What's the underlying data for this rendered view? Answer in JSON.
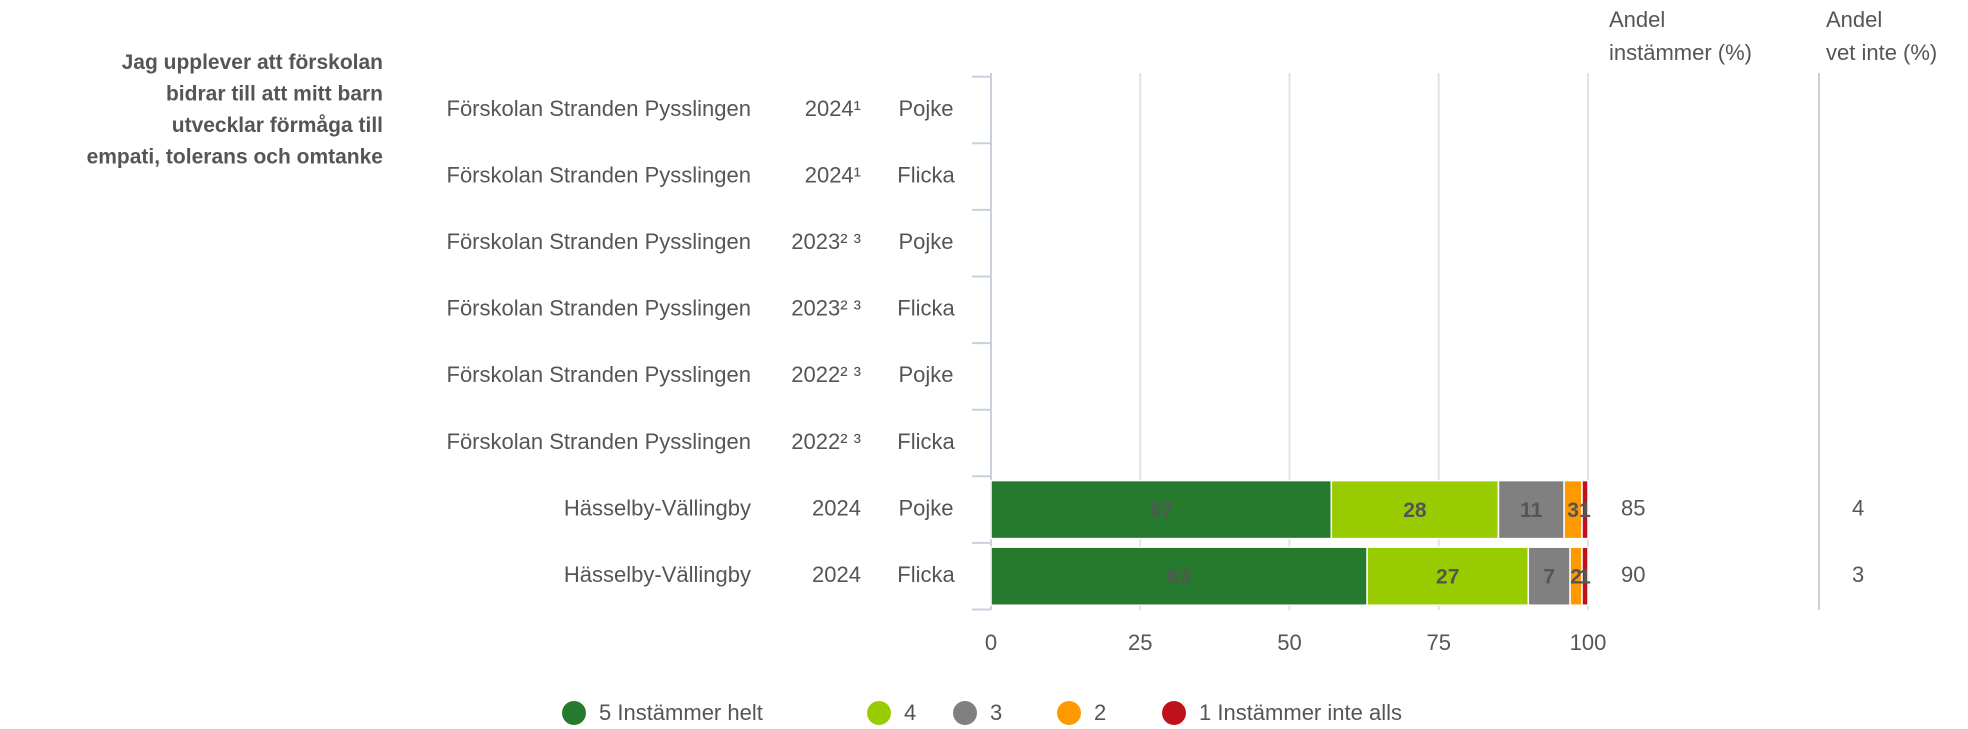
{
  "chart_data": {
    "type": "bar",
    "orientation": "horizontal",
    "stacked": true,
    "question": "Jag upplever att förskolan bidrar till att mitt barn utvecklar förmåga till empati, tolerans och omtanke",
    "categories": [
      "Förskolan Stranden Pysslingen",
      "Förskolan Stranden Pysslingen",
      "Förskolan Stranden Pysslingen",
      "Förskolan Stranden Pysslingen",
      "Förskolan Stranden Pysslingen",
      "Förskolan Stranden Pysslingen",
      "Hässelby-Vällingby",
      "Hässelby-Vällingby"
    ],
    "years": [
      "2024¹",
      "2024¹",
      "2023² ³",
      "2023² ³",
      "2022² ³",
      "2022² ³",
      "2024",
      "2024"
    ],
    "groups": [
      "Pojke",
      "Flicka",
      "Pojke",
      "Flicka",
      "Pojke",
      "Flicka",
      "Pojke",
      "Flicka"
    ],
    "series": [
      {
        "name": "5 Instämmer helt",
        "color": "#267a2e",
        "label_color": "#ffffff",
        "values": [
          null,
          null,
          null,
          null,
          null,
          null,
          57,
          63
        ]
      },
      {
        "name": "4",
        "color": "#99cc00",
        "label_color": "#222222",
        "values": [
          null,
          null,
          null,
          null,
          null,
          null,
          28,
          27
        ]
      },
      {
        "name": "3",
        "color": "#808080",
        "label_color": "#222222",
        "values": [
          null,
          null,
          null,
          null,
          null,
          null,
          11,
          7
        ]
      },
      {
        "name": "2",
        "color": "#ff9900",
        "label_color": "#222222",
        "values": [
          null,
          null,
          null,
          null,
          null,
          null,
          3,
          2
        ]
      },
      {
        "name": "1 Instämmer inte alls",
        "color": "#c0121b",
        "label_color": "#ffffff",
        "values": [
          null,
          null,
          null,
          null,
          null,
          null,
          1,
          1
        ]
      }
    ],
    "extra_columns": [
      {
        "header": [
          "Andel",
          "instämmer (%)"
        ],
        "values": [
          null,
          null,
          null,
          null,
          null,
          null,
          85,
          90
        ]
      },
      {
        "header": [
          "Andel",
          "vet inte (%)"
        ],
        "values": [
          null,
          null,
          null,
          null,
          null,
          null,
          4,
          3
        ]
      }
    ],
    "xlim": [
      0,
      100
    ],
    "xticks": [
      0,
      25,
      50,
      75,
      100
    ],
    "grid": true
  }
}
